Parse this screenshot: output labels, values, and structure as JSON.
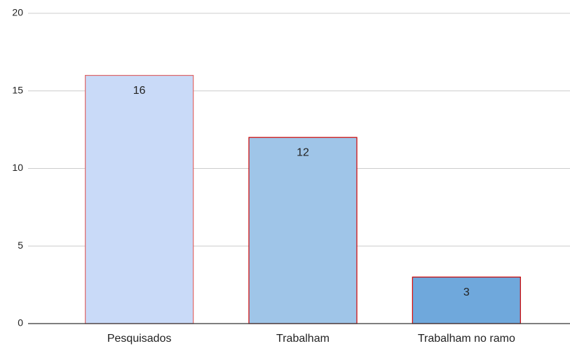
{
  "chart_data": {
    "type": "bar",
    "categories": [
      "Pesquisados",
      "Trabalham",
      "Trabalham no ramo"
    ],
    "values": [
      16,
      12,
      3
    ],
    "colors": [
      "#c9daf8",
      "#9fc5e8",
      "#6fa8dc"
    ],
    "edgecolors": [
      "#e06666",
      "#cc0000",
      "#cc0000"
    ],
    "ylim": [
      0,
      20
    ],
    "yticks": [
      0,
      5,
      10,
      15,
      20
    ],
    "grid": true
  }
}
